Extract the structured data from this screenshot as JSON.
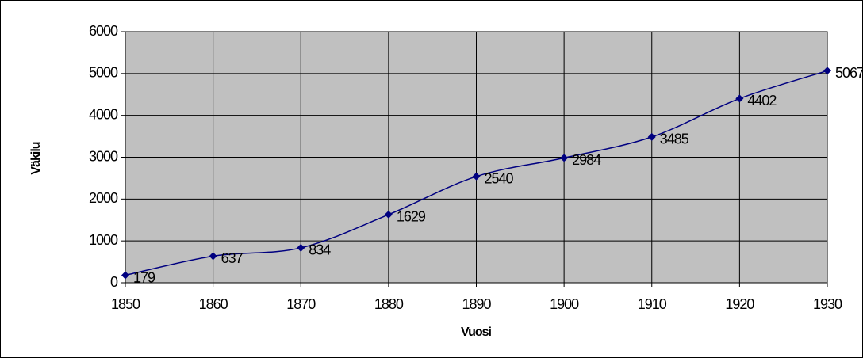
{
  "chart_data": {
    "type": "line",
    "xlabel": "Vuosi",
    "ylabel": "Väkilu",
    "x": [
      1850,
      1860,
      1870,
      1880,
      1890,
      1900,
      1910,
      1920,
      1930
    ],
    "series": [
      {
        "color": "#000080",
        "values": [
          179,
          637,
          834,
          1629,
          2540,
          2984,
          3485,
          4402,
          5067
        ]
      }
    ],
    "xlim": [
      1850,
      1930
    ],
    "xticks": [
      1850,
      1860,
      1870,
      1880,
      1890,
      1900,
      1910,
      1920,
      1930
    ],
    "ylim": [
      0,
      6000
    ],
    "yticks": [
      0,
      1000,
      2000,
      3000,
      4000,
      5000,
      6000
    ],
    "grid": true,
    "plot_background": "#c0c0c0"
  }
}
